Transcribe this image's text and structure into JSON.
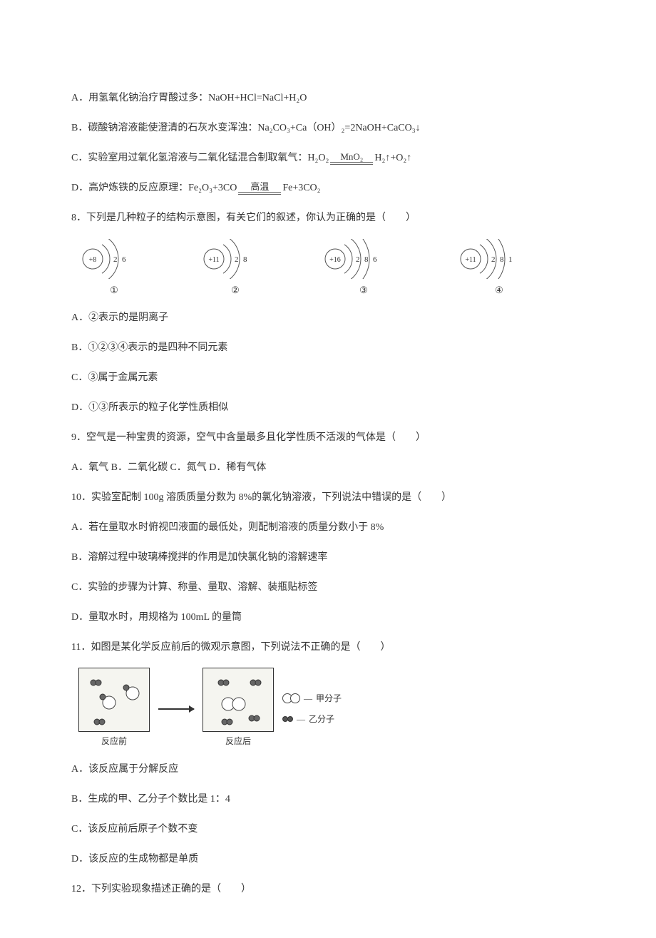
{
  "q7": {
    "optA": "A．用氢氧化钠治疗胃酸过多：NaOH+HCl=NaCl+H₂O",
    "optB": "B．碳酸钠溶液能使澄清的石灰水变浑浊：Na₂CO₃+Ca（OH）₂=2NaOH+CaCO₃↓",
    "optC_pre": "C．实验室用过氧化氢溶液与二氧化锰混合制取氧气：H₂O₂",
    "optC_cond": "MnO₂",
    "optC_post": "H₂↑+O₂↑",
    "optD_pre": "D．高炉炼铁的反应原理：Fe₂O₃+3CO",
    "optD_cond": "高温",
    "optD_post": "Fe+3CO₂"
  },
  "q8": {
    "stem": "8．下列是几种粒子的结构示意图，有关它们的叙述，你认为正确的是（　　）",
    "diagrams": [
      {
        "nucleus": "+8",
        "shells": [
          "2",
          "6"
        ],
        "label": "①"
      },
      {
        "nucleus": "+11",
        "shells": [
          "2",
          "8"
        ],
        "label": "②"
      },
      {
        "nucleus": "+16",
        "shells": [
          "2",
          "8",
          "6"
        ],
        "label": "③"
      },
      {
        "nucleus": "+11",
        "shells": [
          "2",
          "8",
          "1"
        ],
        "label": "④"
      }
    ],
    "optA": "A．②表示的是阴离子",
    "optB": "B．①②③④表示的是四种不同元素",
    "optC": "C．③属于金属元素",
    "optD": "D．①③所表示的粒子化学性质相似"
  },
  "q9": {
    "stem": "9．空气是一种宝贵的资源，空气中含量最多且化学性质不活泼的气体是（　　）",
    "opts": "A．氧气 B．二氧化碳 C．氮气 D．稀有气体"
  },
  "q10": {
    "stem": "10．实验室配制 100g 溶质质量分数为 8%的氯化钠溶液，下列说法中错误的是（　　）",
    "optA": "A．若在量取水时俯视凹液面的最低处，则配制溶液的质量分数小于 8%",
    "optB": "B．溶解过程中玻璃棒搅拌的作用是加快氯化钠的溶解速率",
    "optC": "C．实验的步骤为计算、称量、量取、溶解、装瓶贴标签",
    "optD": "D．量取水时，用规格为 100mL 的量筒"
  },
  "q11": {
    "stem": "11．如图是某化学反应前后的微观示意图，下列说法不正确的是（　　）",
    "before_label": "反应前",
    "after_label": "反应后",
    "legend1": "甲分子",
    "legend2": "乙分子",
    "optA": "A．该反应属于分解反应",
    "optB": "B．生成的甲、乙分子个数比是 1：4",
    "optC": "C．该反应前后原子个数不变",
    "optD": "D．该反应的生成物都是单质"
  },
  "q12": {
    "stem": "12．下列实验现象描述正确的是（　　）"
  },
  "colors": {
    "text": "#333333",
    "background": "#ffffff",
    "stroke": "#555555"
  }
}
